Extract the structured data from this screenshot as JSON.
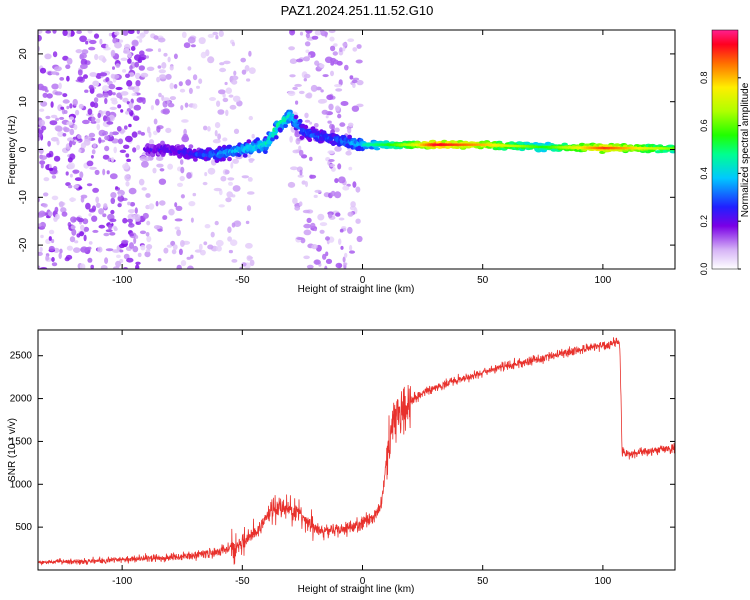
{
  "title": "PAZ1.2024.251.11.52.G10",
  "chart_data": [
    {
      "type": "heatmap",
      "xlabel": "Height of straight line (km)",
      "ylabel": "Frequency (Hz)",
      "xlim": [
        -135,
        130
      ],
      "ylim": [
        -25,
        25
      ],
      "xticks": [
        -100,
        -50,
        0,
        50,
        100
      ],
      "yticks": [
        20,
        10,
        0,
        -10,
        -20
      ],
      "colorbar": {
        "label": "Normalized spectral amplitude",
        "ticks": [
          0.0,
          0.2,
          0.4,
          0.6,
          0.8
        ],
        "range": [
          0,
          1
        ]
      },
      "ridge": {
        "x": [
          -90,
          -80,
          -70,
          -60,
          -50,
          -40,
          -35,
          -30,
          -25,
          -20,
          -10,
          0,
          10,
          20,
          30,
          50,
          75,
          100,
          130
        ],
        "frequency": [
          0,
          0,
          -1,
          -1,
          0,
          1,
          5,
          7,
          4,
          3,
          2,
          1,
          1,
          1,
          1,
          1,
          0.5,
          0.3,
          0.2
        ],
        "amplitude": [
          0.2,
          0.22,
          0.25,
          0.35,
          0.4,
          0.45,
          0.5,
          0.45,
          0.3,
          0.3,
          0.3,
          0.4,
          0.5,
          0.65,
          0.9,
          0.75,
          0.5,
          0.85,
          0.55
        ]
      }
    },
    {
      "type": "line",
      "xlabel": "Height of straight line (km)",
      "ylabel": "SNR (10 * v/v)",
      "xlim": [
        -135,
        130
      ],
      "ylim": [
        0,
        2800
      ],
      "xticks": [
        -100,
        -50,
        0,
        50,
        100
      ],
      "yticks": [
        500,
        1000,
        1500,
        2000,
        2500
      ],
      "color": "#e8312c",
      "series": [
        {
          "x": [
            -135,
            -120,
            -100,
            -80,
            -70,
            -60,
            -55,
            -50,
            -45,
            -40,
            -35,
            -30,
            -25,
            -20,
            -15,
            -10,
            -5,
            0,
            5,
            8,
            10,
            12,
            15,
            20,
            25,
            30,
            40,
            50,
            60,
            70,
            80,
            90,
            100,
            105,
            107,
            108,
            110,
            120,
            130
          ],
          "y": [
            90,
            100,
            120,
            150,
            170,
            210,
            260,
            300,
            420,
            600,
            750,
            700,
            620,
            480,
            450,
            470,
            500,
            540,
            640,
            780,
            1300,
            1700,
            1850,
            1980,
            2060,
            2130,
            2220,
            2300,
            2380,
            2440,
            2510,
            2570,
            2620,
            2650,
            2660,
            1380,
            1350,
            1390,
            1420
          ]
        }
      ]
    }
  ]
}
